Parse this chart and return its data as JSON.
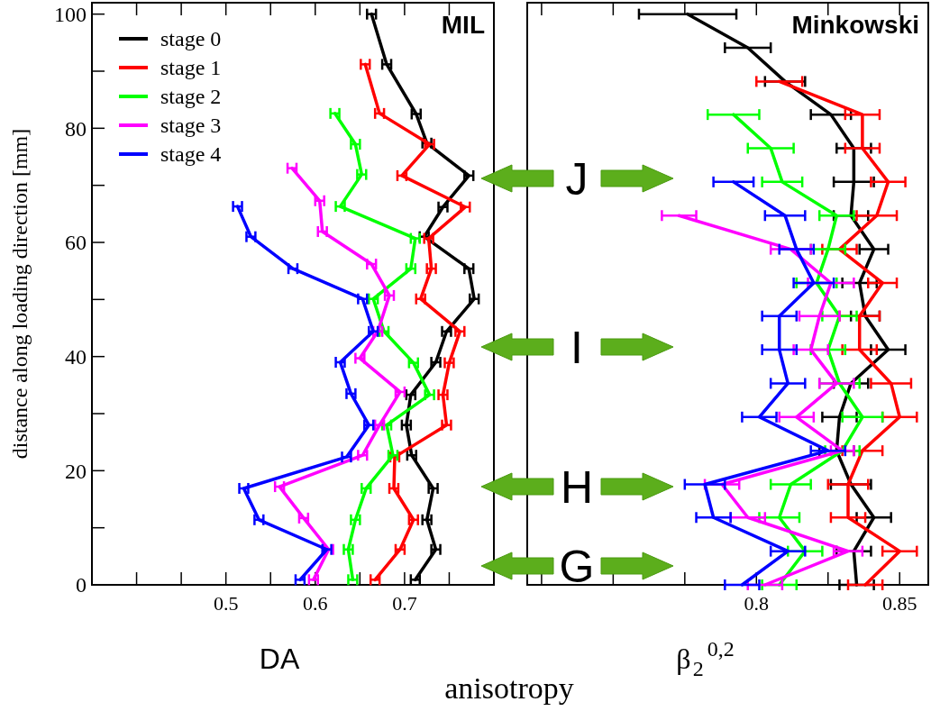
{
  "chart_data": [
    {
      "type": "line",
      "title": "MIL",
      "xlabel": "DA",
      "ylabel": "distance along loading direction [mm]",
      "legend": "top left",
      "xlim": [
        0.35,
        0.8
      ],
      "xticks": [
        {
          "value": 0.4,
          "label": null
        },
        {
          "value": 0.45,
          "label": null
        },
        0.5,
        {
          "value": 0.55,
          "label": null
        },
        0.6,
        {
          "value": 0.65,
          "label": null
        },
        0.7,
        {
          "value": 0.75,
          "label": null
        }
      ],
      "ylim": [
        0,
        102
      ],
      "yticks": [
        0,
        {
          "value": 10,
          "label": null
        },
        20,
        {
          "value": 30,
          "label": null
        },
        40,
        {
          "value": 50,
          "label": null
        },
        60,
        {
          "value": 70,
          "label": null
        },
        80,
        {
          "value": 90,
          "label": null
        },
        100
      ],
      "series": [
        {
          "name": "stage 0",
          "color": "#000000",
          "x": [
            0.663,
            0.68,
            0.713,
            0.725,
            0.772,
            0.743,
            0.722,
            0.772,
            0.778,
            0.747,
            0.735,
            0.707,
            0.702,
            0.708,
            0.732,
            0.725,
            0.735,
            0.712
          ],
          "values": [
            100,
            91.2,
            82.5,
            77.4,
            71.7,
            66.2,
            61,
            55.4,
            50.1,
            44.4,
            39,
            33.3,
            28,
            22.7,
            16.9,
            11.4,
            6.2,
            0.9
          ],
          "xerrors": [
            0.005,
            0.005,
            0.005,
            0.005,
            0.005,
            0.005,
            0.005,
            0.005,
            0.005,
            0.005,
            0.005,
            0.005,
            0.005,
            0.005,
            0.005,
            0.005,
            0.005,
            0.005
          ]
        },
        {
          "name": "stage 1",
          "color": "#ff0000",
          "x": [
            0.656,
            0.672,
            0.728,
            0.697,
            0.768,
            0.727,
            0.73,
            0.718,
            0.762,
            0.75,
            0.743,
            0.747,
            0.689,
            0.688,
            0.71,
            0.695,
            0.667
          ],
          "values": [
            91.2,
            82.6,
            77.2,
            71.7,
            66.2,
            60.7,
            55.4,
            50.1,
            44.4,
            38.9,
            33.3,
            28,
            22.4,
            16.9,
            11.4,
            6.2,
            0.9
          ],
          "xerrors": [
            0.005,
            0.005,
            0.005,
            0.005,
            0.005,
            0.005,
            0.005,
            0.005,
            0.005,
            0.005,
            0.005,
            0.005,
            0.005,
            0.005,
            0.005,
            0.005,
            0.005
          ]
        },
        {
          "name": "stage 2",
          "color": "#00ff00",
          "x": [
            0.622,
            0.645,
            0.652,
            0.628,
            0.712,
            0.707,
            0.665,
            0.677,
            0.71,
            0.728,
            0.68,
            0.687,
            0.657,
            0.645,
            0.637,
            0.642
          ],
          "values": [
            82.6,
            77.2,
            71.9,
            66.3,
            60.7,
            55.4,
            50.1,
            44.4,
            38.9,
            33.3,
            28,
            22.7,
            16.9,
            11.4,
            6.2,
            0.9
          ],
          "xerrors": [
            0.005,
            0.005,
            0.005,
            0.005,
            0.005,
            0.005,
            0.005,
            0.005,
            0.005,
            0.005,
            0.005,
            0.005,
            0.005,
            0.005,
            0.005,
            0.005
          ]
        },
        {
          "name": "stage 3",
          "color": "#ff00ff",
          "x": [
            0.574,
            0.605,
            0.608,
            0.663,
            0.683,
            0.67,
            0.65,
            0.695,
            0.672,
            0.653,
            0.56,
            0.587,
            0.615,
            0.598
          ],
          "values": [
            73,
            67.3,
            61.9,
            56.2,
            50.7,
            44.4,
            39.7,
            33.8,
            28,
            22.7,
            17.2,
            11.7,
            6.2,
            0.9
          ],
          "xerrors": [
            0.005,
            0.005,
            0.005,
            0.005,
            0.005,
            0.005,
            0.005,
            0.005,
            0.005,
            0.005,
            0.005,
            0.005,
            0.005,
            0.005
          ]
        },
        {
          "name": "stage 4",
          "color": "#0000ff",
          "x": [
            0.513,
            0.528,
            0.575,
            0.653,
            0.665,
            0.628,
            0.64,
            0.66,
            0.635,
            0.52,
            0.537,
            0.613,
            0.583
          ],
          "values": [
            66.3,
            61,
            55.4,
            50.1,
            44.4,
            39,
            33.5,
            28,
            22.4,
            16.9,
            11.4,
            6.2,
            0.9
          ],
          "xerrors": [
            0.005,
            0.005,
            0.005,
            0.005,
            0.005,
            0.005,
            0.005,
            0.005,
            0.005,
            0.005,
            0.005,
            0.005,
            0.005
          ]
        }
      ]
    },
    {
      "type": "line",
      "title": "Minkowski",
      "xlabel": "β$_{2}$$^{0,2}$",
      "tick_labels": "x",
      "annotations": [
        "anisotropy",
        "J",
        "I",
        "H",
        "G"
      ],
      "xlim": [
        0.72,
        0.86
      ],
      "xticks": [
        {
          "value": 0.725,
          "label": null
        },
        {
          "value": 0.75,
          "label": null
        },
        {
          "value": 0.775,
          "label": null
        },
        0.8,
        {
          "value": 0.825,
          "label": null
        },
        0.85
      ],
      "ylim": [
        0,
        102
      ],
      "series": [
        {
          "color": "#000000",
          "x": [
            0.776,
            0.797,
            0.81,
            0.826,
            0.834,
            0.834,
            0.833,
            0.841,
            0.836,
            0.838,
            0.846,
            0.833,
            0.829,
            0.828,
            0.833,
            0.841,
            0.834,
            0.835
          ],
          "values": [
            100,
            94.1,
            88.2,
            82.4,
            76.5,
            70.6,
            64.7,
            58.8,
            52.9,
            47.1,
            41.2,
            35.3,
            29.4,
            23.5,
            17.6,
            11.8,
            5.9,
            0
          ],
          "xerrors": [
            0.017,
            0.008,
            0.007,
            0.007,
            0.006,
            0.007,
            0.006,
            0.005,
            0.006,
            0.005,
            0.006,
            0.006,
            0.006,
            0.006,
            0.007,
            0.006,
            0.006,
            0.006
          ]
        },
        {
          "color": "#ff0000",
          "x": [
            0.808,
            0.837,
            0.837,
            0.846,
            0.842,
            0.829,
            0.844,
            0.836,
            0.836,
            0.847,
            0.85,
            0.837,
            0.832,
            0.832,
            0.85,
            0.838
          ],
          "values": [
            88.2,
            82.4,
            76.5,
            70.6,
            64.7,
            58.8,
            52.9,
            47.1,
            41.2,
            35.3,
            29.4,
            23.5,
            17.6,
            11.8,
            5.9,
            0
          ],
          "xerrors": [
            0.008,
            0.006,
            0.006,
            0.006,
            0.007,
            0.006,
            0.005,
            0.007,
            0.006,
            0.007,
            0.006,
            0.007,
            0.007,
            0.006,
            0.006,
            0.006
          ]
        },
        {
          "color": "#00ff00",
          "x": [
            0.792,
            0.805,
            0.809,
            0.828,
            0.825,
            0.821,
            0.829,
            0.825,
            0.829,
            0.837,
            0.83,
            0.812,
            0.808,
            0.817,
            0.808
          ],
          "values": [
            82.4,
            76.5,
            70.6,
            64.7,
            58.8,
            52.9,
            47.1,
            41.2,
            35.3,
            29.4,
            23.5,
            17.6,
            11.8,
            5.9,
            0
          ],
          "xerrors": [
            0.009,
            0.008,
            0.007,
            0.006,
            0.006,
            0.007,
            0.006,
            0.006,
            0.007,
            0.007,
            0.006,
            0.007,
            0.007,
            0.006,
            0.006
          ]
        },
        {
          "color": "#ff00ff",
          "x": [
            0.773,
            0.812,
            0.826,
            0.822,
            0.819,
            0.828,
            0.814,
            0.83,
            0.788,
            0.797,
            0.832,
            0.803
          ],
          "values": [
            64.7,
            58.8,
            52.9,
            47.1,
            41.2,
            35.3,
            29.4,
            23.5,
            17.6,
            11.8,
            5.9,
            0
          ],
          "xerrors": [
            0.006,
            0.007,
            0.008,
            0.007,
            0.006,
            0.006,
            0.006,
            0.004,
            0.006,
            0.006,
            0.005,
            0.006
          ]
        },
        {
          "color": "#0000ff",
          "x": [
            0.792,
            0.81,
            0.814,
            0.82,
            0.808,
            0.808,
            0.811,
            0.801,
            0.825,
            0.782,
            0.785,
            0.811,
            0.795
          ],
          "values": [
            70.6,
            64.7,
            58.8,
            52.9,
            47.1,
            41.2,
            35.3,
            29.4,
            23.5,
            17.6,
            11.8,
            5.9,
            0
          ],
          "xerrors": [
            0.007,
            0.007,
            0.006,
            0.007,
            0.006,
            0.006,
            0.006,
            0.006,
            0.006,
            0.007,
            0.006,
            0.006,
            0.006
          ]
        }
      ]
    }
  ]
}
